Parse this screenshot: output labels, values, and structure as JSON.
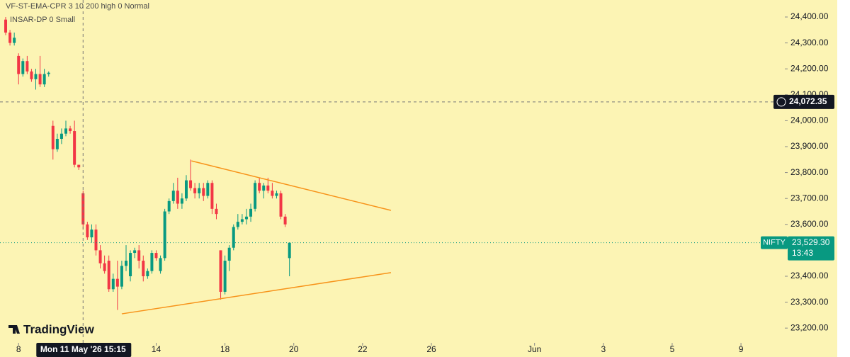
{
  "chart_data": {
    "type": "candlestick",
    "indicators": [
      "VF-ST-EMA-CPR 3 10 200 high 0 Normal",
      "INSAR-DP 0 Small"
    ],
    "brand": "TradingView",
    "up_color": "#089981",
    "down_color": "#f23645",
    "trendline_color": "#f7931a",
    "open": [
      24390,
      24340,
      24300,
      24250,
      24180,
      24230,
      24190,
      24160,
      24180,
      24140,
      24180,
      23980,
      23890,
      23930,
      23950,
      23970,
      23960,
      23830,
      23720,
      23600,
      23550,
      23580,
      23500,
      23450,
      23460,
      23350,
      23390,
      23360,
      23440,
      23400,
      23490,
      23500,
      23460,
      23400,
      23420,
      23490,
      23420,
      23470,
      23650,
      23690,
      23730,
      23680,
      23700,
      23770,
      23740,
      23720,
      23740,
      23710,
      23760,
      23660,
      23500,
      23340,
      23460,
      23510,
      23590,
      23610,
      23620,
      23630,
      23660,
      23760,
      23730,
      23750,
      23730,
      23710,
      23720,
      23630,
      23470
    ],
    "high": [
      24400,
      24350,
      24340,
      24260,
      24240,
      24250,
      24200,
      24200,
      24250,
      24200,
      24190,
      24000,
      23950,
      23970,
      24000,
      23980,
      24000,
      23830,
      23730,
      23610,
      23600,
      23600,
      23520,
      23480,
      23480,
      23410,
      23460,
      23460,
      23520,
      23500,
      23510,
      23520,
      23480,
      23430,
      23500,
      23500,
      23480,
      23660,
      23700,
      23760,
      23780,
      23720,
      23790,
      23850,
      23760,
      23760,
      23760,
      23770,
      23770,
      23680,
      23500,
      23480,
      23520,
      23600,
      23640,
      23640,
      23660,
      23680,
      23770,
      23780,
      23760,
      23780,
      23760,
      23730,
      23730,
      23640,
      23530
    ],
    "low": [
      24330,
      24290,
      24290,
      24140,
      24170,
      24180,
      24150,
      24120,
      24130,
      24130,
      24170,
      23850,
      23880,
      23910,
      23940,
      23950,
      23820,
      23810,
      23580,
      23540,
      23530,
      23480,
      23430,
      23410,
      23340,
      23340,
      23270,
      23350,
      23420,
      23380,
      23470,
      23430,
      23380,
      23390,
      23410,
      23460,
      23410,
      23460,
      23640,
      23680,
      23660,
      23660,
      23690,
      23730,
      23700,
      23700,
      23690,
      23700,
      23640,
      23620,
      23310,
      23330,
      23420,
      23500,
      23580,
      23600,
      23600,
      23610,
      23650,
      23720,
      23700,
      23720,
      23700,
      23700,
      23620,
      23590,
      23400
    ],
    "close": [
      24340,
      24300,
      24320,
      24180,
      24230,
      24190,
      24160,
      24180,
      24140,
      24180,
      24185,
      23890,
      23930,
      23950,
      23970,
      23960,
      23830,
      23820,
      23600,
      23550,
      23580,
      23500,
      23450,
      23420,
      23350,
      23390,
      23360,
      23440,
      23460,
      23490,
      23500,
      23460,
      23400,
      23420,
      23490,
      23470,
      23470,
      23650,
      23690,
      23730,
      23680,
      23700,
      23770,
      23740,
      23720,
      23740,
      23710,
      23760,
      23660,
      23640,
      23340,
      23460,
      23510,
      23590,
      23610,
      23620,
      23630,
      23660,
      23760,
      23730,
      23750,
      23730,
      23710,
      23720,
      23630,
      23600,
      23529.3
    ],
    "xlim": [
      -1.32,
      181.2
    ],
    "xticks": [
      {
        "value": 3,
        "label": "8"
      },
      {
        "value": 35,
        "label": "14"
      },
      {
        "value": 51,
        "label": "18"
      },
      {
        "value": 67,
        "label": "20"
      },
      {
        "value": 83,
        "label": "22"
      },
      {
        "value": 99,
        "label": "26"
      },
      {
        "value": 123,
        "label": "Jun"
      },
      {
        "value": 139,
        "label": "3"
      },
      {
        "value": 155,
        "label": "5"
      },
      {
        "value": 171,
        "label": "9"
      }
    ],
    "ylim": [
      23148.6,
      24465.6
    ],
    "yticks": [
      {
        "value": 24400,
        "label": "24,400.00"
      },
      {
        "value": 24300,
        "label": "24,300.00"
      },
      {
        "value": 24200,
        "label": "24,200.00"
      },
      {
        "value": 24100,
        "label": "24,100.00"
      },
      {
        "value": 24000,
        "label": "24,000.00"
      },
      {
        "value": 23900,
        "label": "23,900.00"
      },
      {
        "value": 23800,
        "label": "23,800.00"
      },
      {
        "value": 23700,
        "label": "23,700.00"
      },
      {
        "value": 23600,
        "label": "23,600.00"
      },
      {
        "value": 23400,
        "label": "23,400.00"
      },
      {
        "value": 23300,
        "label": "23,300.00"
      },
      {
        "value": 23200,
        "label": "23,200.00"
      }
    ],
    "trendlines": [
      {
        "start": [
          43.2,
          23845
        ],
        "end": [
          89.6,
          23654
        ]
      },
      {
        "start": [
          27,
          23255
        ],
        "end": [
          89.6,
          23414
        ]
      }
    ],
    "crosshair": {
      "x": 18,
      "x_label": "Mon 11 May '26 15:15",
      "price": 24072.35,
      "price_label": "24,072.35"
    },
    "last_price": {
      "symbol": "NIFTY",
      "value": 23529.3,
      "label": "23,529.30",
      "countdown": "13:43"
    }
  }
}
